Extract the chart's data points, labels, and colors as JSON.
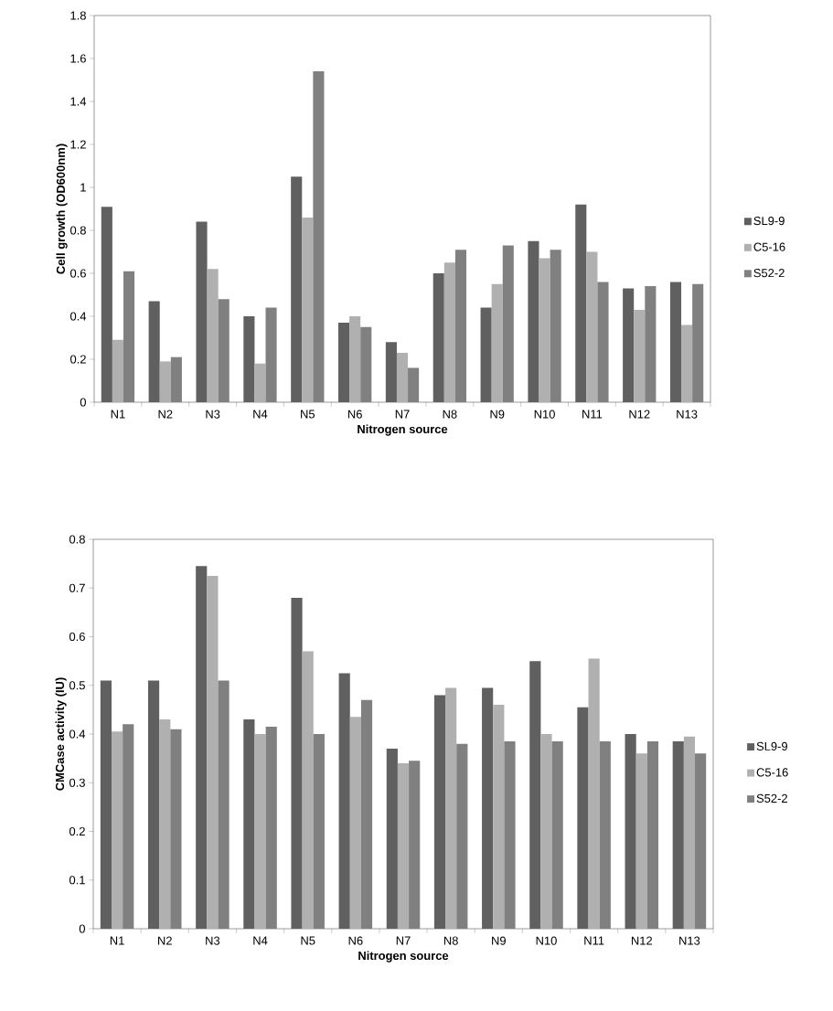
{
  "chart_data": [
    {
      "type": "bar",
      "xlabel": "Nitrogen source",
      "ylabel": "Cell growth (OD600nm)",
      "categories": [
        "N1",
        "N2",
        "N3",
        "N4",
        "N5",
        "N6",
        "N7",
        "N8",
        "N9",
        "N10",
        "N11",
        "N12",
        "N13"
      ],
      "series": [
        {
          "name": "SL9-9",
          "color": "#606060",
          "values": [
            0.91,
            0.47,
            0.84,
            0.4,
            1.05,
            0.37,
            0.28,
            0.6,
            0.44,
            0.75,
            0.92,
            0.53,
            0.56
          ]
        },
        {
          "name": "C5-16",
          "color": "#b0b0b0",
          "values": [
            0.29,
            0.19,
            0.62,
            0.18,
            0.86,
            0.4,
            0.23,
            0.65,
            0.55,
            0.67,
            0.7,
            0.43,
            0.36
          ]
        },
        {
          "name": "S52-2",
          "color": "#808080",
          "values": [
            0.61,
            0.21,
            0.48,
            0.44,
            1.54,
            0.35,
            0.16,
            0.71,
            0.73,
            0.71,
            0.56,
            0.54,
            0.55
          ]
        }
      ],
      "ylim": [
        0,
        1.8
      ],
      "yticks": [
        0,
        0.2,
        0.4,
        0.6,
        0.8,
        1,
        1.2,
        1.4,
        1.6,
        1.8
      ],
      "legend": "right"
    },
    {
      "type": "bar",
      "xlabel": "Nitrogen source",
      "ylabel": "CMCase activity  (IU)",
      "categories": [
        "N1",
        "N2",
        "N3",
        "N4",
        "N5",
        "N6",
        "N7",
        "N8",
        "N9",
        "N10",
        "N11",
        "N12",
        "N13"
      ],
      "series": [
        {
          "name": "SL9-9",
          "color": "#606060",
          "values": [
            0.51,
            0.51,
            0.745,
            0.43,
            0.68,
            0.525,
            0.37,
            0.48,
            0.495,
            0.55,
            0.455,
            0.4,
            0.385
          ]
        },
        {
          "name": "C5-16",
          "color": "#b0b0b0",
          "values": [
            0.405,
            0.43,
            0.725,
            0.4,
            0.57,
            0.435,
            0.34,
            0.495,
            0.46,
            0.4,
            0.555,
            0.36,
            0.395
          ]
        },
        {
          "name": "S52-2",
          "color": "#808080",
          "values": [
            0.42,
            0.41,
            0.51,
            0.415,
            0.4,
            0.47,
            0.345,
            0.38,
            0.385,
            0.385,
            0.385,
            0.385,
            0.36
          ]
        }
      ],
      "ylim": [
        0,
        0.8
      ],
      "yticks": [
        0,
        0.1,
        0.2,
        0.3,
        0.4,
        0.5,
        0.6,
        0.7,
        0.8
      ],
      "legend": "right"
    }
  ]
}
